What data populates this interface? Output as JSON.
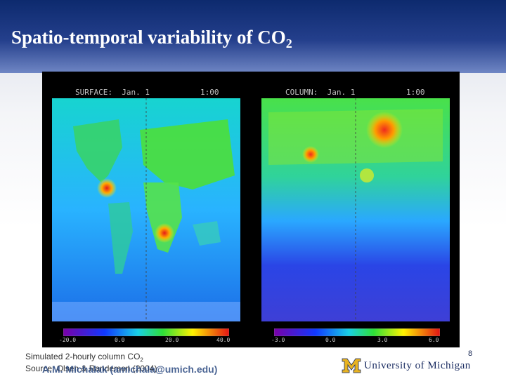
{
  "slide": {
    "title": "Spatio-temporal variability of CO",
    "title_sub": "2",
    "caption": "Simulated 2-hourly column CO",
    "caption_sub": "2",
    "source": "Source: Olsen & Randerson (2004)",
    "email": "A.M. Michalak (amichala@umich.edu)",
    "page_number": "8",
    "logo_text": "University of Michigan"
  },
  "figure": {
    "left_panel": {
      "label": "SURFACE:  Jan. 1",
      "time": "1:00",
      "colorbar_ticks": [
        "-20.0",
        "0.0",
        "20.0",
        "40.0"
      ]
    },
    "right_panel": {
      "label": "COLUMN:  Jan. 1",
      "time": "1:00",
      "colorbar_ticks": [
        "-3.0",
        "0.0",
        "3.0",
        "6.0"
      ]
    }
  },
  "colors": {
    "header_dark": "#0d2a6e",
    "accent": "#1b2d62",
    "logo_gold": "#e8b321"
  }
}
